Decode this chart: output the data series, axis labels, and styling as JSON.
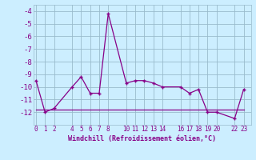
{
  "xlabel": "Windchill (Refroidissement éolien,°C)",
  "x_values": [
    0,
    1,
    2,
    4,
    5,
    6,
    7,
    8,
    10,
    11,
    12,
    13,
    14,
    16,
    17,
    18,
    19,
    20,
    22,
    23
  ],
  "y_values": [
    -9.5,
    -12.0,
    -11.7,
    -10.0,
    -9.2,
    -10.5,
    -10.5,
    -4.2,
    -9.7,
    -9.5,
    -9.5,
    -9.7,
    -10.0,
    -10.0,
    -10.5,
    -10.2,
    -12.0,
    -12.0,
    -12.5,
    -10.2
  ],
  "y2_values": [
    -11.8,
    -11.8,
    -11.8,
    -11.8,
    -11.8,
    -11.8,
    -11.8,
    -11.8,
    -11.8,
    -11.8,
    -11.8,
    -11.8,
    -11.8,
    -11.8,
    -11.8,
    -11.8,
    -11.8,
    -11.8,
    -11.8,
    -11.8
  ],
  "line_color": "#880088",
  "bg_color": "#cceeff",
  "grid_color": "#99bbcc",
  "tick_color": "#880088",
  "label_color": "#880088",
  "ylim": [
    -13.0,
    -3.5
  ],
  "xlim": [
    -0.3,
    23.8
  ],
  "yticks": [
    -12,
    -11,
    -10,
    -9,
    -8,
    -7,
    -6,
    -5,
    -4
  ],
  "xticks": [
    0,
    1,
    2,
    4,
    5,
    6,
    7,
    8,
    10,
    11,
    12,
    13,
    14,
    16,
    17,
    18,
    19,
    20,
    22,
    23
  ]
}
